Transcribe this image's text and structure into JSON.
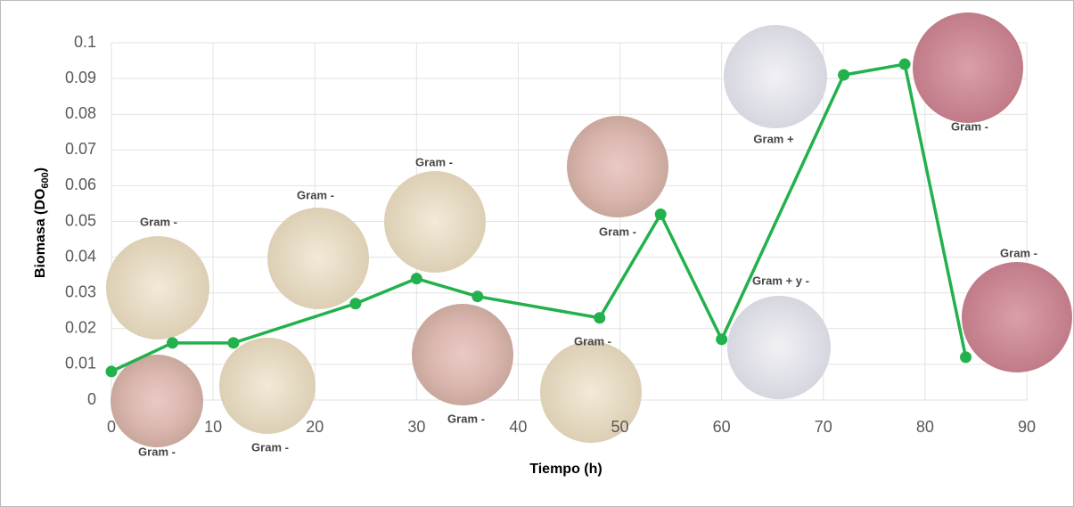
{
  "chart_data": {
    "type": "line",
    "xlabel": "Tiempo (h)",
    "ylabel": [
      "Biomasa (DO",
      "600",
      ")"
    ],
    "x": [
      0,
      6,
      12,
      24,
      30,
      36,
      48,
      54,
      60,
      72,
      78,
      84
    ],
    "series": [
      {
        "color": "#22b14c",
        "values": [
          0.008,
          0.016,
          0.016,
          0.027,
          0.034,
          0.029,
          0.023,
          0.052,
          0.017,
          0.091,
          0.094,
          0.012
        ]
      }
    ],
    "xlim": [
      0,
      90
    ],
    "xticks": [
      0,
      10,
      20,
      30,
      40,
      50,
      60,
      70,
      80,
      90
    ],
    "ylim": [
      0,
      0.1
    ],
    "yticks": [
      0,
      0.01,
      0.02,
      0.03,
      0.04,
      0.05,
      0.06,
      0.07,
      0.08,
      0.09,
      0.1
    ],
    "grid": true,
    "annotations": [
      "Gram -",
      "Gram -",
      "Gram -",
      "Gram -",
      "Gram -",
      "Gram -",
      "Gram -",
      "Gram -",
      "Gram +",
      "Gram + y -",
      "Gram -",
      "Gram -"
    ]
  }
}
